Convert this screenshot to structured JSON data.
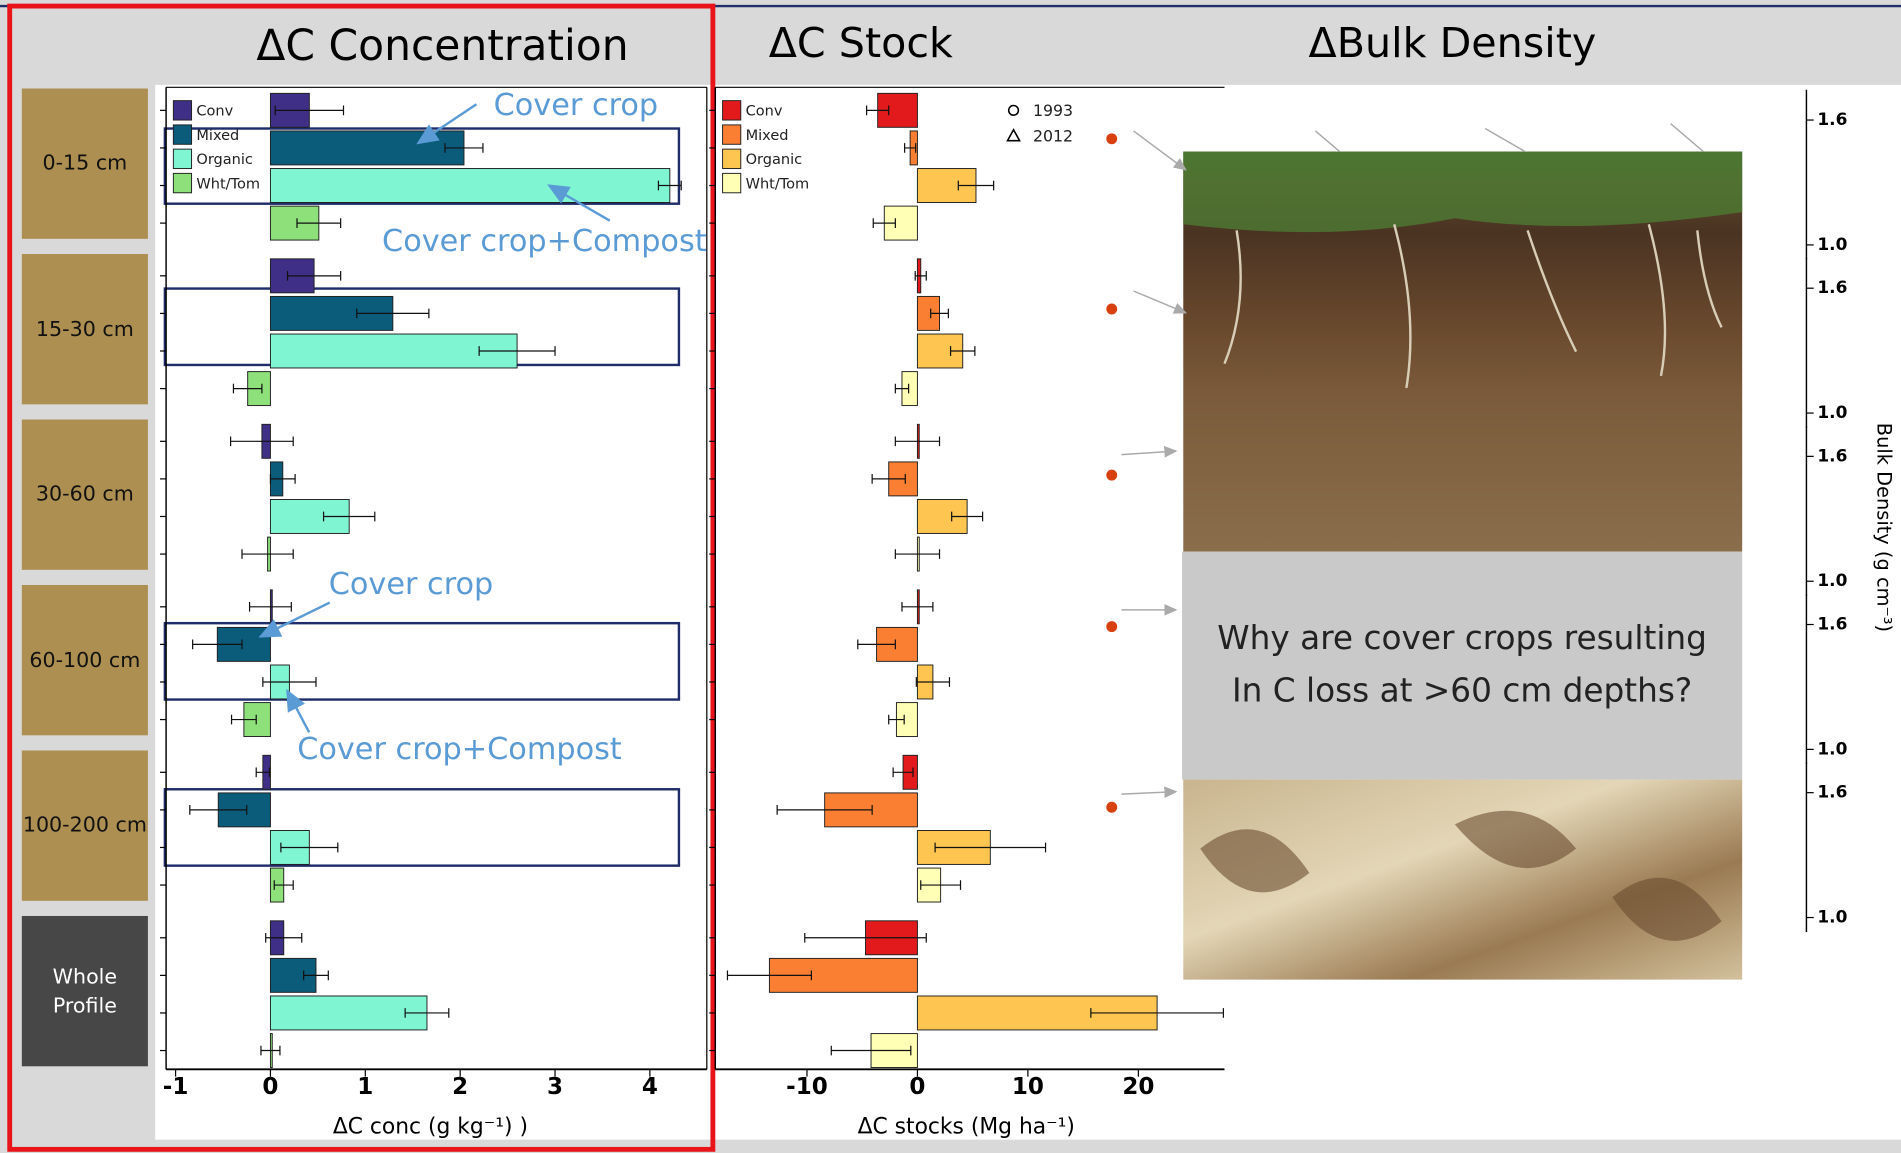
{
  "chart_data": [
    {
      "type": "bar",
      "orientation": "horizontal",
      "title": "ΔC Concentration",
      "x_label": "ΔC conc (g kg⁻¹) )",
      "categories": [
        "0-15 cm",
        "15-30 cm",
        "30-60 cm",
        "60-100 cm",
        "100-200 cm",
        "Whole Profile"
      ],
      "series": [
        {
          "name": "Conv",
          "color": "#3f2f86",
          "values": [
            0.41,
            0.46,
            -0.09,
            0,
            -0.08,
            0.14
          ],
          "errors": [
            0.36,
            0.28,
            0.33,
            0.22,
            0.07,
            0.19
          ]
        },
        {
          "name": "Mixed",
          "color": "#0a5c7a",
          "values": [
            2.04,
            1.29,
            0.13,
            -0.56,
            -0.55,
            0.48
          ],
          "errors": [
            0.2,
            0.38,
            0.13,
            0.26,
            0.3,
            0.13
          ]
        },
        {
          "name": "Organic",
          "color": "#80f5d2",
          "values": [
            4.21,
            2.6,
            0.83,
            0.2,
            0.41,
            1.65
          ],
          "errors": [
            0.12,
            0.4,
            0.27,
            0.28,
            0.3,
            0.23
          ]
        },
        {
          "name": "Wht/Tom",
          "color": "#8ee07a",
          "values": [
            0.51,
            -0.24,
            -0.03,
            -0.28,
            0.14,
            0
          ],
          "errors": [
            0.23,
            0.15,
            0.27,
            0.13,
            0.1,
            0.1
          ]
        }
      ],
      "xlim": [
        -1.1,
        4.6
      ],
      "xticks": [
        -1,
        0,
        1,
        2,
        3,
        4
      ],
      "annotations": [
        "Cover crop",
        "Cover crop+Compost",
        "Cover crop",
        "Cover crop+Compost"
      ]
    },
    {
      "type": "bar",
      "orientation": "horizontal",
      "title": "ΔC Stock",
      "x_label": "ΔC stocks (Mg ha⁻¹)",
      "series": [
        {
          "name": "Conv",
          "color": "#e31a1c",
          "values": [
            -3.6,
            0.3,
            0,
            0,
            -1.3,
            -4.7
          ],
          "errors": [
            1,
            0.5,
            2,
            1.4,
            0.9,
            5.5
          ]
        },
        {
          "name": "Mixed",
          "color": "#fb7f33",
          "values": [
            -0.66,
            2,
            -2.6,
            -3.7,
            -8.4,
            -13.4
          ],
          "errors": [
            0.5,
            0.8,
            1.5,
            1.7,
            4.3,
            3.8
          ]
        },
        {
          "name": "Organic",
          "color": "#fec550",
          "values": [
            5.3,
            4.1,
            4.5,
            1.4,
            6.6,
            21.7
          ],
          "errors": [
            1.6,
            1.1,
            1.4,
            1.5,
            5,
            6
          ]
        },
        {
          "name": "Wht/Tom",
          "color": "#ffffb5",
          "values": [
            -3,
            -1.4,
            0,
            -1.9,
            2.1,
            -4.2
          ],
          "errors": [
            1,
            0.6,
            2,
            0.7,
            1.8,
            3.6
          ]
        }
      ],
      "xlim": [
        -18.3,
        27.8
      ],
      "xticks": [
        -10,
        0,
        10,
        20
      ]
    },
    {
      "type": "scatter",
      "title": "ΔBulk Density",
      "y_label": "Bulk Density (g cm⁻³)",
      "series": [
        {
          "name": "1993",
          "marker": "circle",
          "color": "#d9400f",
          "values": [
            1.51,
            1.5,
            1.51,
            1.59,
            1.53
          ]
        },
        {
          "name": "2012",
          "marker": "triangle"
        }
      ],
      "ylim": [
        1.0,
        1.6
      ],
      "yticks": [
        {
          "value": 1.0,
          "label": "1.0"
        },
        1.6
      ]
    }
  ],
  "callout": {
    "lines": [
      "Why are cover crops resulting",
      "In C loss at >60 cm depths?"
    ]
  }
}
